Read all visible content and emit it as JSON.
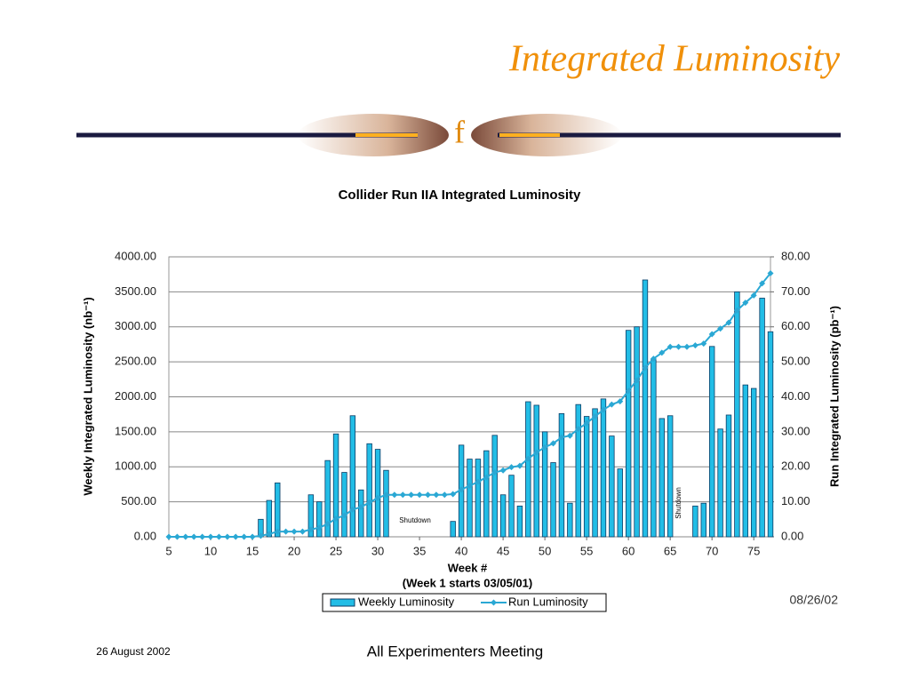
{
  "slide": {
    "title": "Integrated Luminosity",
    "logo": "f",
    "footer_left": "26 August 2002",
    "footer_center": "All Experimenters Meeting"
  },
  "chart_data": {
    "type": "bar_line",
    "title": "Collider Run IIA Integrated Luminosity",
    "xlabel": "Week  #",
    "xlabel2": "(Week 1 starts 03/05/01)",
    "ylabel": "Weekly Integrated Luminosity (nb⁻¹)",
    "y2label": "Run Integrated Luminosity (pb⁻¹)",
    "date": "08/26/02",
    "x": [
      5,
      6,
      7,
      8,
      9,
      10,
      11,
      12,
      13,
      14,
      15,
      16,
      17,
      18,
      19,
      20,
      21,
      22,
      23,
      24,
      25,
      26,
      27,
      28,
      29,
      30,
      31,
      32,
      33,
      34,
      35,
      36,
      37,
      38,
      39,
      40,
      41,
      42,
      43,
      44,
      45,
      46,
      47,
      48,
      49,
      50,
      51,
      52,
      53,
      54,
      55,
      56,
      57,
      58,
      59,
      60,
      61,
      62,
      63,
      64,
      65,
      66,
      67,
      68,
      69,
      70,
      71,
      72,
      73,
      74,
      75,
      76,
      77
    ],
    "xlim": [
      5,
      77
    ],
    "xticks": [
      5,
      10,
      15,
      20,
      25,
      30,
      35,
      40,
      45,
      50,
      55,
      60,
      65,
      70,
      75
    ],
    "ylim": [
      0,
      4000
    ],
    "yticks": [
      {
        "value": 0,
        "label": "0.00"
      },
      {
        "value": 500,
        "label": "500.00"
      },
      {
        "value": 1000,
        "label": "1000.00"
      },
      {
        "value": 1500,
        "label": "1500.00"
      },
      {
        "value": 2000,
        "label": "2000.00"
      },
      {
        "value": 2500,
        "label": "2500.00"
      },
      {
        "value": 3000,
        "label": "3000.00"
      },
      {
        "value": 3500,
        "label": "3500.00"
      },
      {
        "value": 4000,
        "label": "4000.00"
      }
    ],
    "y2lim": [
      0,
      80
    ],
    "y2ticks": [
      {
        "value": 0,
        "label": "0.00"
      },
      {
        "value": 10,
        "label": "10.00"
      },
      {
        "value": 20,
        "label": "20.00"
      },
      {
        "value": 30,
        "label": "30.00"
      },
      {
        "value": 40,
        "label": "40.00"
      },
      {
        "value": 50,
        "label": "50.00"
      },
      {
        "value": 60,
        "label": "60.00"
      },
      {
        "value": 70,
        "label": "70.00"
      },
      {
        "value": 80,
        "label": "80.00"
      }
    ],
    "grid": true,
    "legend": "bottom",
    "series": [
      {
        "name": "Weekly Luminosity",
        "color": "#22bde6",
        "type": "bar",
        "values": [
          0,
          0,
          0,
          0,
          0,
          0,
          0,
          0,
          0,
          0,
          0,
          250,
          520,
          770,
          0,
          0,
          0,
          600,
          500,
          1090,
          1470,
          920,
          1730,
          670,
          1330,
          1250,
          950,
          0,
          0,
          0,
          0,
          0,
          0,
          0,
          220,
          1310,
          1110,
          1110,
          1230,
          1450,
          600,
          880,
          440,
          1930,
          1880,
          1500,
          1060,
          1760,
          480,
          1890,
          1720,
          1830,
          1970,
          1440,
          970,
          2950,
          3000,
          3670,
          2530,
          1690,
          1730,
          0,
          0,
          440,
          480,
          2720,
          1540,
          1740,
          3500,
          2170,
          2120,
          3410,
          2930
        ]
      },
      {
        "name": "Run Luminosity",
        "color": "#2aa8d4",
        "type": "line",
        "axis": "y2",
        "values": [
          0,
          0,
          0,
          0,
          0,
          0,
          0,
          0,
          0,
          0,
          0,
          0.3,
          0.8,
          1.5,
          1.5,
          1.5,
          1.5,
          2.1,
          2.6,
          3.7,
          5.2,
          6.1,
          7.8,
          8.5,
          9.8,
          11.1,
          12.0,
          12.0,
          12.0,
          12.0,
          12.0,
          12.0,
          12.0,
          12.0,
          12.2,
          13.5,
          14.6,
          15.7,
          17.0,
          18.4,
          19.0,
          19.9,
          20.3,
          22.3,
          24.1,
          25.6,
          26.7,
          28.4,
          28.9,
          30.8,
          32.5,
          34.4,
          36.3,
          37.8,
          38.7,
          41.7,
          44.7,
          48.3,
          50.9,
          52.6,
          54.3,
          54.3,
          54.3,
          54.7,
          55.2,
          57.9,
          59.5,
          61.2,
          64.7,
          66.9,
          69.0,
          72.4,
          75.3
        ]
      }
    ],
    "annotations": [
      {
        "text": "Shutdown"
      },
      {
        "text": "Shutdown"
      }
    ]
  }
}
